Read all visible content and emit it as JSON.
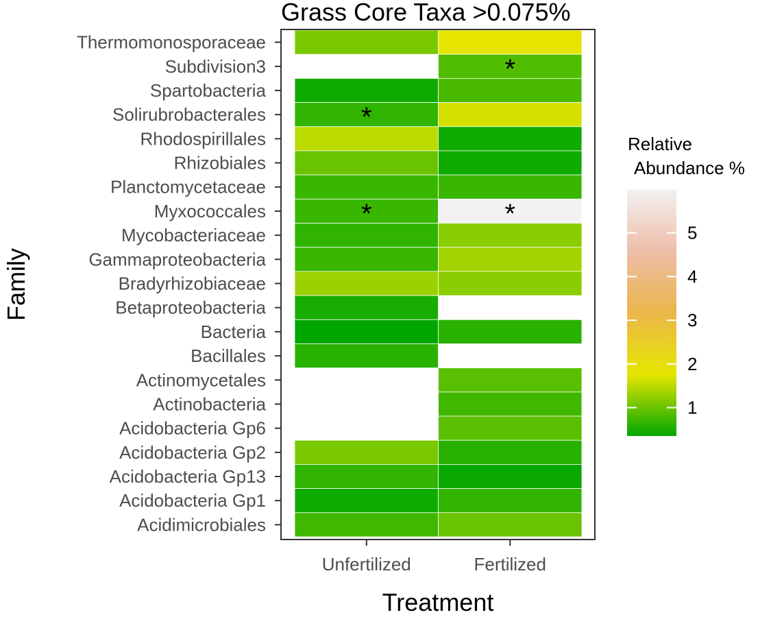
{
  "chart_data": {
    "type": "heatmap",
    "title": "Grass Core Taxa >0.075%",
    "xlabel": "Treatment",
    "ylabel": "Family",
    "x_categories": [
      "Unfertilized",
      "Fertilized"
    ],
    "y_categories": [
      "Thermomonosporaceae",
      "Subdivision3",
      "Spartobacteria",
      "Solirubrobacterales",
      "Rhodospirillales",
      "Rhizobiales",
      "Planctomycetaceae",
      "Myxococcales",
      "Mycobacteriaceae",
      "Gammaproteobacteria",
      "Bradyrhizobiaceae",
      "Betaproteobacteria",
      "Bacteria",
      "Bacillales",
      "Actinomycetales",
      "Actinobacteria",
      "Acidobacteria Gp6",
      "Acidobacteria Gp2",
      "Acidobacteria Gp13",
      "Acidobacteria Gp1",
      "Acidimicrobiales"
    ],
    "values": [
      [
        1.1,
        1.8
      ],
      [
        null,
        0.85
      ],
      [
        0.45,
        0.8
      ],
      [
        0.65,
        1.65
      ],
      [
        1.5,
        0.45
      ],
      [
        1.0,
        0.45
      ],
      [
        0.7,
        0.7
      ],
      [
        0.7,
        6.0
      ],
      [
        0.65,
        1.2
      ],
      [
        0.7,
        1.35
      ],
      [
        1.3,
        1.2
      ],
      [
        0.5,
        null
      ],
      [
        0.35,
        0.6
      ],
      [
        0.6,
        null
      ],
      [
        null,
        0.9
      ],
      [
        null,
        0.75
      ],
      [
        null,
        0.9
      ],
      [
        1.1,
        0.6
      ],
      [
        0.65,
        0.4
      ],
      [
        0.45,
        0.65
      ],
      [
        0.75,
        1.0
      ]
    ],
    "significance": [
      [
        "",
        ""
      ],
      [
        "",
        "*"
      ],
      [
        "",
        ""
      ],
      [
        "*",
        ""
      ],
      [
        "",
        ""
      ],
      [
        "",
        ""
      ],
      [
        "",
        ""
      ],
      [
        "*",
        "*"
      ],
      [
        "",
        ""
      ],
      [
        "",
        ""
      ],
      [
        "",
        ""
      ],
      [
        "",
        ""
      ],
      [
        "",
        ""
      ],
      [
        "",
        ""
      ],
      [
        "",
        ""
      ],
      [
        "",
        ""
      ],
      [
        "",
        ""
      ],
      [
        "",
        ""
      ],
      [
        "",
        ""
      ],
      [
        "",
        ""
      ],
      [
        "",
        ""
      ]
    ],
    "legend": {
      "title_line1": "Relative",
      "title_line2": "Abundance %",
      "ticks": [
        1,
        2,
        3,
        4,
        5
      ],
      "range": [
        0.35,
        6.0
      ],
      "placement": "right",
      "colors": [
        "#00a600",
        "#e6e600",
        "#eab64b",
        "#eebda9",
        "#f2f2f2"
      ]
    },
    "panel_border": false,
    "grid": false
  }
}
